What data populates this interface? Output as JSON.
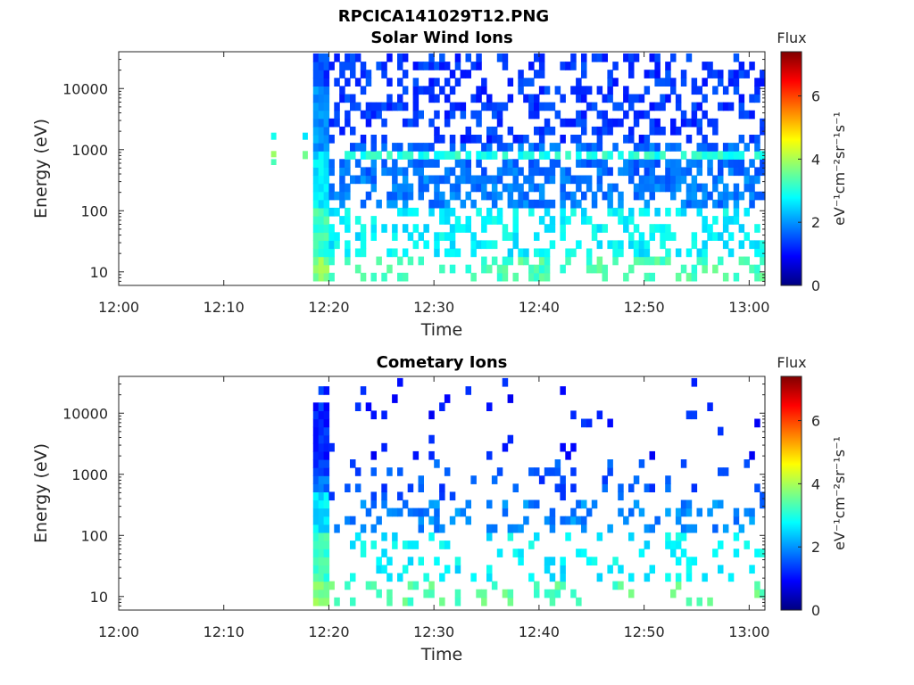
{
  "figure": {
    "suptitle": "RPCICA141029T12.PNG"
  },
  "chart_data": [
    {
      "type": "heatmap",
      "title": "Solar Wind Ions",
      "xlabel": "Time",
      "ylabel": "Energy (eV)",
      "x_ticks": [
        "12:00",
        "12:10",
        "12:20",
        "12:30",
        "12:40",
        "12:50",
        "13:00"
      ],
      "y_ticks": [
        "10",
        "100",
        "1000",
        "10000"
      ],
      "y_scale": "log",
      "xlim_minutes": [
        0,
        61.5
      ],
      "ylim_eV": [
        6,
        40000
      ],
      "colorbar": {
        "title": "Flux",
        "unit": "eV⁻¹cm⁻²sr⁻¹s⁻¹",
        "ticks": [
          "0",
          "2",
          "4",
          "6"
        ],
        "range": [
          0,
          7.4
        ],
        "colormap": "jet"
      },
      "data_start_minute": 18.5,
      "data_end_minute": 61.5,
      "sporadic_points": [
        {
          "minute": 14.5,
          "energy_low": 1450,
          "energy_high": 1900,
          "flux": 2.9
        },
        {
          "minute": 14.5,
          "energy_low": 750,
          "energy_high": 950,
          "flux": 3.9
        },
        {
          "minute": 14.5,
          "energy_low": 560,
          "energy_high": 700,
          "flux": 3.3
        },
        {
          "minute": 17.5,
          "energy_low": 1450,
          "energy_high": 1900,
          "flux": 2.6
        },
        {
          "minute": 17.5,
          "energy_low": 700,
          "energy_high": 950,
          "flux": 3.6
        }
      ]
    },
    {
      "type": "heatmap",
      "title": "Cometary Ions",
      "xlabel": "Time",
      "ylabel": "Energy (eV)",
      "x_ticks": [
        "12:00",
        "12:10",
        "12:20",
        "12:30",
        "12:40",
        "12:50",
        "13:00"
      ],
      "y_ticks": [
        "10",
        "100",
        "1000",
        "10000"
      ],
      "y_scale": "log",
      "xlim_minutes": [
        0,
        61.5
      ],
      "ylim_eV": [
        6,
        40000
      ],
      "colorbar": {
        "title": "Flux",
        "unit": "eV⁻¹cm⁻²sr⁻¹s⁻¹",
        "ticks": [
          "0",
          "2",
          "4",
          "6"
        ],
        "range": [
          0,
          7.4
        ],
        "colormap": "jet"
      },
      "data_start_minute": 18.5,
      "data_end_minute": 61.5,
      "sporadic_points": []
    }
  ]
}
